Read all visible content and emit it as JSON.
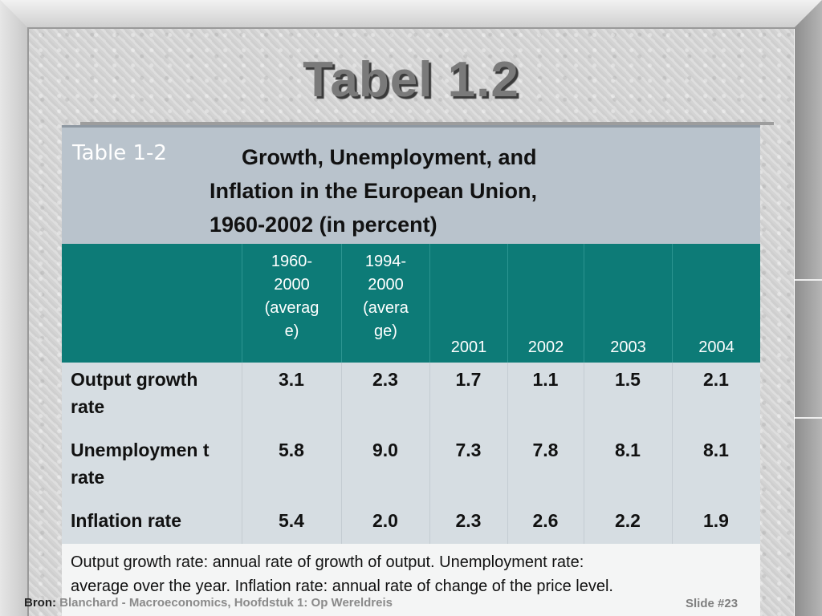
{
  "slide": {
    "title": "Tabel 1.2",
    "footer_source_label": "Bron:",
    "footer_source_text": " Blanchard - Macroeconomics, Hoofdstuk 1: Op Wereldreis",
    "footer_slide": "Slide #23"
  },
  "table": {
    "label": "Table 1-2",
    "caption_lines": [
      "Growth, Unemployment, and",
      "Inflation in the European Union,",
      "1960-2002 (in percent)"
    ],
    "columns": [
      "1960-\n2000\n(averag\ne)",
      "1994-\n2000\n(avera\nge)",
      "2001",
      "2002",
      "2003",
      "2004"
    ],
    "rows": [
      {
        "label": "Output growth rate",
        "values": [
          "3.1",
          "2.3",
          "1.7",
          "1.1",
          "1.5",
          "2.1"
        ]
      },
      {
        "label": "Unemploymen t rate",
        "values": [
          "5.8",
          "9.0",
          "7.3",
          "7.8",
          "8.1",
          "8.1"
        ]
      },
      {
        "label": "Inflation rate",
        "values": [
          "5.4",
          "2.0",
          "2.3",
          "2.6",
          "2.2",
          "1.9"
        ]
      }
    ],
    "notes": "Output growth rate:  annual rate of growth of output. Unemployment rate:  average over the year.  Inflation rate: annual rate of change of the price level."
  },
  "colors": {
    "header_band": "#b9c3cc",
    "column_header": "#0d7b77",
    "body": "#d6dde2",
    "title_text": "#7a7a7a"
  }
}
